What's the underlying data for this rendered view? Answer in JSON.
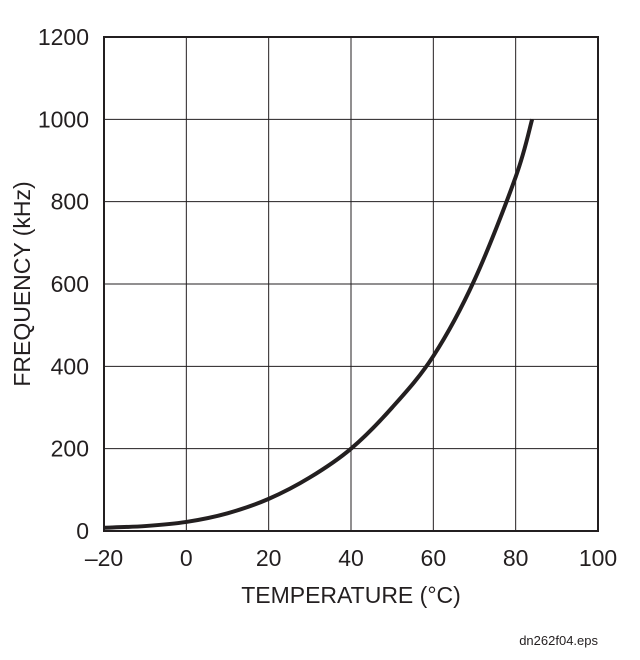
{
  "chart_data": {
    "type": "line",
    "xlabel": "TEMPERATURE (°C)",
    "ylabel": "FREQUENCY (kHz)",
    "xlim": [
      -20,
      100
    ],
    "ylim": [
      0,
      1200
    ],
    "x_ticks": [
      -20,
      0,
      20,
      40,
      60,
      80,
      100
    ],
    "x_tick_labels": [
      "–20",
      "0",
      "20",
      "40",
      "60",
      "80",
      "100"
    ],
    "y_ticks": [
      0,
      200,
      400,
      600,
      800,
      1000,
      1200
    ],
    "y_tick_labels": [
      "0",
      "200",
      "400",
      "600",
      "800",
      "1000",
      "1200"
    ],
    "grid": true,
    "series": [
      {
        "x": [
          -20,
          -10,
          0,
          10,
          20,
          30,
          40,
          50,
          60,
          70,
          80,
          84
        ],
        "y": [
          8,
          12,
          22,
          43,
          78,
          130,
          200,
          300,
          425,
          610,
          860,
          1000
        ]
      }
    ],
    "colors": {
      "line": "#231f20",
      "grid": "#231f20",
      "text": "#231f20"
    }
  },
  "footnote": "dn262f04.eps"
}
